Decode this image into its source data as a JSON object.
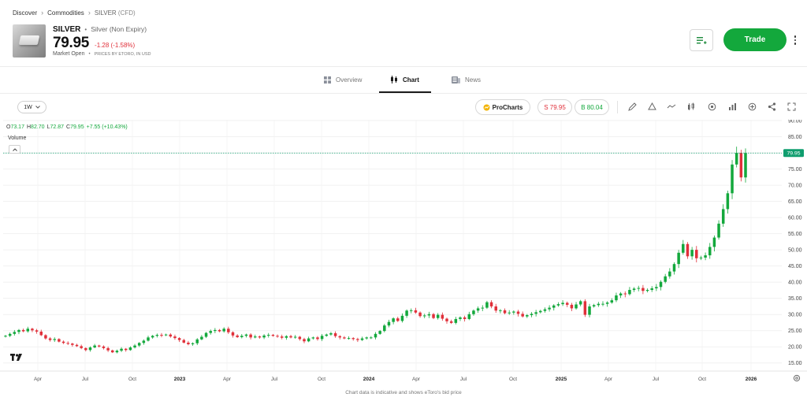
{
  "breadcrumb": {
    "items": [
      "Discover",
      "Commodities"
    ],
    "current": "SILVER",
    "current_suffix": "(CFD)"
  },
  "instrument": {
    "symbol": "SILVER",
    "name": "Silver (Non Expiry)",
    "price": "79.95",
    "change": "-1.28 (-1.58%)",
    "market_status": "Market Open",
    "prices_by": "PRICES BY eToro, IN USD"
  },
  "actions": {
    "trade_label": "Trade",
    "icons": [
      "watchlist-icon",
      "more-icon"
    ]
  },
  "tabs": [
    {
      "label": "Overview",
      "icon": "grid-icon",
      "active": false
    },
    {
      "label": "Chart",
      "icon": "candles-icon",
      "active": true
    },
    {
      "label": "News",
      "icon": "newspaper-icon",
      "active": false
    }
  ],
  "toolbar": {
    "interval": "1W",
    "procharts_label": "ProCharts",
    "sell_label": "S 79.95",
    "buy_label": "B 80.04",
    "tools": [
      "pen-icon",
      "shapes-icon",
      "line-icon",
      "candle-type-icon",
      "indicator-icon",
      "bar-chart-icon",
      "add-icon",
      "share-icon",
      "expand-icon"
    ]
  },
  "ohlc": {
    "o_label": "O",
    "o": "73.17",
    "h_label": "H",
    "h": "82.70",
    "l_label": "L",
    "l": "72.87",
    "c_label": "C",
    "c": "79.95",
    "chg": "+7.55 (+10.43%)"
  },
  "volume_label": "Volume",
  "footnote": "Chart data is indicative and shows eToro's bid price",
  "colors": {
    "up": "#13a83c",
    "down": "#e0303a",
    "trade": "#13a83c",
    "last_price": "#0f9d6e"
  },
  "chart_data": {
    "type": "candlestick",
    "interval": "1W",
    "ylim": [
      12.5,
      90
    ],
    "y_ticks": [
      "90.00",
      "85.00",
      "80.00",
      "75.00",
      "70.00",
      "65.00",
      "60.00",
      "55.00",
      "50.00",
      "45.00",
      "40.00",
      "35.00",
      "30.00",
      "25.00",
      "20.00",
      "15.00"
    ],
    "x_ticks": [
      "Apr",
      "Jul",
      "Oct",
      "2023",
      "Apr",
      "Jul",
      "Oct",
      "2024",
      "Apr",
      "Jul",
      "Oct",
      "2025",
      "Apr",
      "Jul",
      "Oct",
      "2026"
    ],
    "last_price": "79.95",
    "close_series": [
      23.4,
      24.0,
      24.6,
      25.2,
      24.8,
      25.6,
      25.1,
      24.7,
      23.6,
      22.6,
      22.1,
      22.4,
      21.6,
      21.2,
      21.0,
      20.6,
      20.2,
      19.6,
      19.0,
      19.8,
      20.4,
      20.1,
      19.6,
      18.9,
      18.3,
      18.8,
      19.4,
      19.0,
      19.8,
      20.4,
      21.2,
      21.9,
      22.9,
      23.4,
      23.7,
      23.6,
      23.8,
      23.2,
      22.7,
      22.1,
      21.3,
      20.8,
      21.1,
      22.3,
      23.1,
      24.3,
      24.9,
      25.2,
      24.8,
      25.6,
      24.5,
      23.5,
      23.0,
      23.4,
      23.8,
      22.9,
      23.2,
      22.9,
      23.5,
      23.7,
      23.4,
      23.2,
      22.8,
      23.3,
      22.9,
      23.1,
      22.4,
      21.7,
      22.6,
      22.9,
      22.4,
      23.4,
      23.8,
      24.2,
      23.3,
      22.9,
      22.6,
      22.7,
      22.4,
      22.1,
      22.6,
      22.9,
      22.9,
      24.0,
      24.9,
      26.6,
      27.7,
      28.8,
      28.0,
      29.6,
      31.2,
      31.3,
      30.6,
      29.5,
      29.7,
      30.1,
      28.9,
      29.9,
      28.7,
      27.9,
      27.4,
      28.6,
      29.1,
      28.6,
      30.1,
      31.2,
      31.9,
      32.1,
      33.8,
      32.5,
      31.2,
      31.3,
      30.4,
      30.6,
      30.9,
      30.2,
      29.4,
      29.8,
      30.2,
      30.7,
      31.1,
      31.6,
      32.1,
      32.8,
      33.2,
      33.6,
      33.0,
      31.9,
      33.1,
      34.1,
      29.9,
      32.5,
      32.9,
      33.3,
      33.3,
      33.7,
      34.4,
      35.9,
      36.5,
      36.3,
      37.6,
      38.0,
      38.2,
      37.3,
      37.6,
      38.1,
      38.5,
      40.1,
      41.8,
      43.3,
      45.6,
      49.1,
      51.8,
      48.0,
      50.0,
      47.4,
      47.6,
      48.3,
      50.9,
      53.8,
      58.1,
      62.6,
      67.5,
      76.4,
      80.0,
      72.4,
      79.95
    ]
  }
}
